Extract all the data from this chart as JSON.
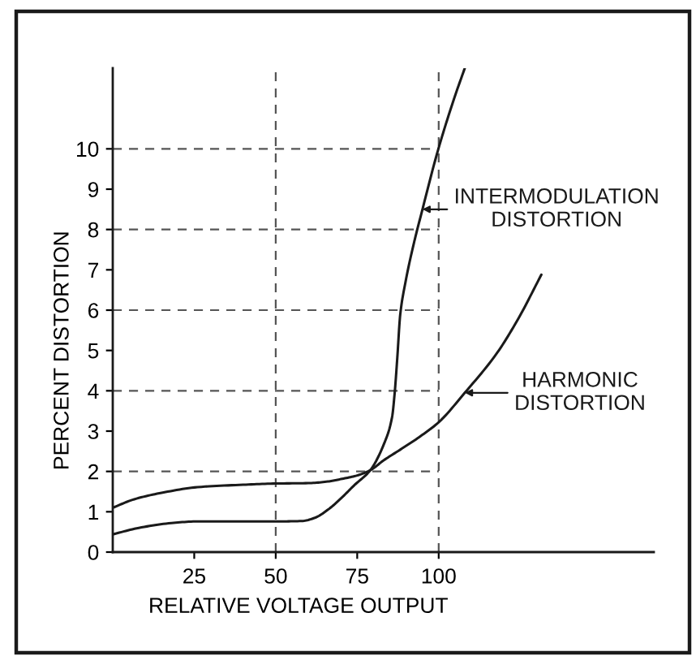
{
  "chart_data": {
    "type": "line",
    "xlabel": "RELATIVE VOLTAGE OUTPUT",
    "ylabel": "PERCENT DISTORTION",
    "xlim": [
      0,
      166
    ],
    "ylim": [
      0,
      12
    ],
    "xticks": [
      25,
      50,
      75,
      100
    ],
    "yticks": [
      0,
      1,
      2,
      3,
      4,
      5,
      6,
      7,
      8,
      9,
      10
    ],
    "series": [
      {
        "color": "#1a1a1a",
        "x": [
          0,
          8,
          18,
          26,
          40,
          50,
          58,
          62,
          66,
          70,
          74,
          79,
          83.2,
          85.7,
          86.5,
          87.3,
          88.2,
          89.8,
          92.3,
          94.8,
          99.8,
          104.7,
          108
        ],
        "values": [
          0.44,
          0.6,
          0.72,
          0.76,
          0.76,
          0.76,
          0.77,
          0.85,
          1.05,
          1.33,
          1.65,
          2.03,
          2.68,
          3.35,
          3.95,
          4.82,
          5.89,
          6.69,
          7.63,
          8.43,
          9.97,
          11.24,
          12.0
        ]
      },
      {
        "color": "#1a1a1a",
        "x": [
          0,
          6.6,
          15,
          26,
          40,
          50,
          60,
          66,
          70,
          75,
          79,
          83.2,
          88.2,
          94,
          100,
          108,
          118,
          124.5,
          131.5
        ],
        "values": [
          1.1,
          1.31,
          1.47,
          1.61,
          1.67,
          1.7,
          1.71,
          1.75,
          1.81,
          1.9,
          2.03,
          2.28,
          2.54,
          2.85,
          3.22,
          3.95,
          4.95,
          5.8,
          6.88
        ]
      }
    ],
    "ref_lines": [
      {
        "axis": "x",
        "value": 50,
        "color": "#555555",
        "line_style": "dashed"
      },
      {
        "axis": "x",
        "value": 100,
        "color": "#555555",
        "line_style": "dashed"
      },
      {
        "axis": "y",
        "value": 2,
        "color": "#555555",
        "line_style": "dashed"
      },
      {
        "axis": "y",
        "value": 4,
        "color": "#555555",
        "line_style": "dashed"
      },
      {
        "axis": "y",
        "value": 6,
        "color": "#555555",
        "line_style": "dashed"
      },
      {
        "axis": "y",
        "value": 8,
        "color": "#555555",
        "line_style": "dashed"
      },
      {
        "axis": "y",
        "value": 10,
        "color": "#555555",
        "line_style": "dashed"
      }
    ],
    "annotations": [
      {
        "text": "INTERMODULATION\nDISTORTION",
        "x": 95.0,
        "y": 8.5
      },
      {
        "text": "HARMONIC\nDISTORTION",
        "x": 108.0,
        "y": 3.95
      }
    ]
  }
}
